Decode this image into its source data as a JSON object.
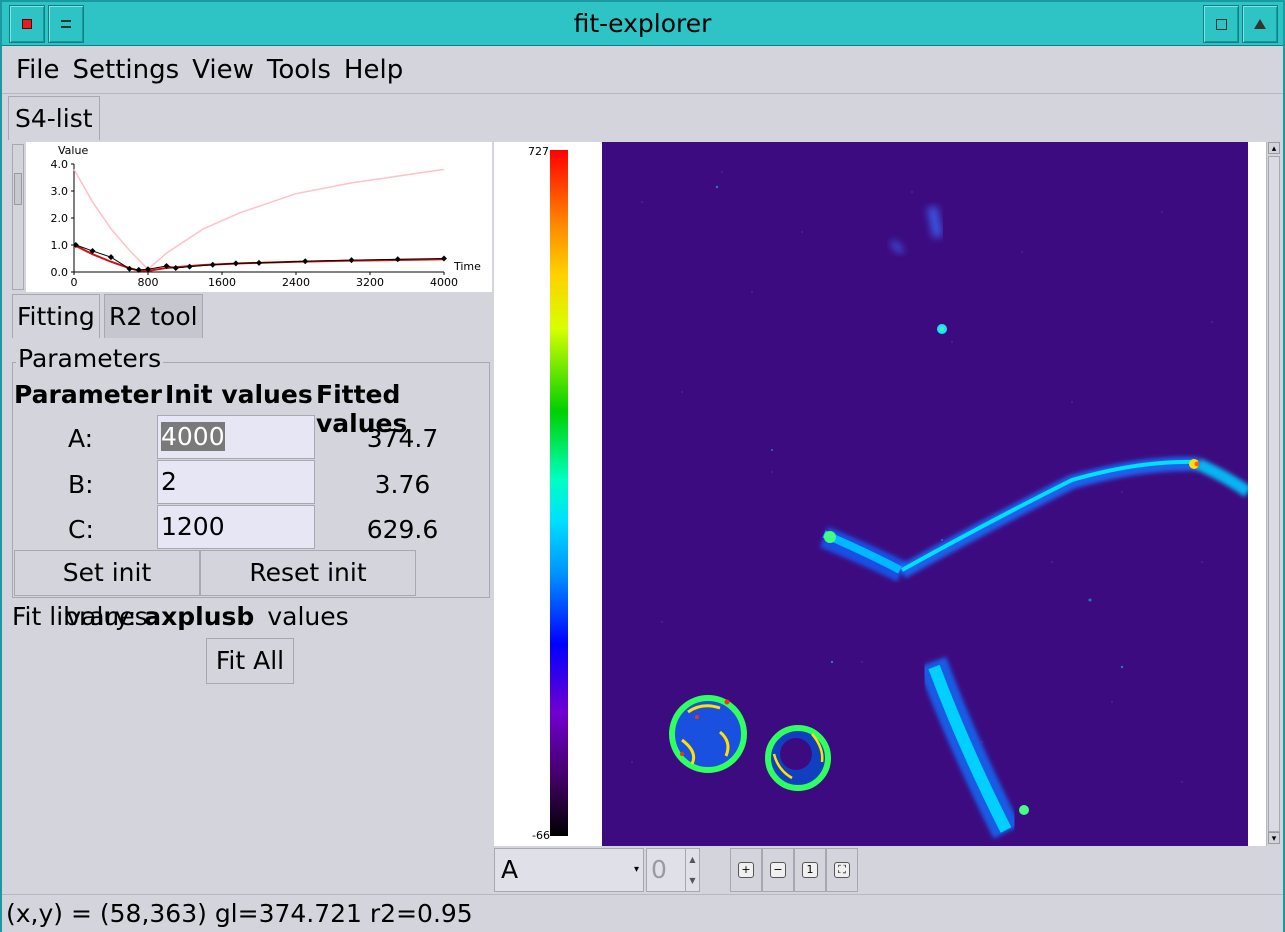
{
  "window": {
    "title": "fit-explorer"
  },
  "menu": {
    "items": [
      "File",
      "Settings",
      "View",
      "Tools",
      "Help"
    ]
  },
  "tabs": {
    "main": "S4-list",
    "fitting": "Fitting",
    "r2tool": "R2 tool"
  },
  "parameters": {
    "group_title": "Parameters",
    "headers": {
      "param": "Parameter",
      "init": "Init values",
      "fitted": "Fitted values"
    },
    "rows": [
      {
        "name": "A:",
        "init": "4000",
        "fitted": "374.7"
      },
      {
        "name": "B:",
        "init": "2",
        "fitted": "3.76"
      },
      {
        "name": "C:",
        "init": "1200",
        "fitted": "629.6"
      }
    ],
    "set_button": "Set init values",
    "reset_button": "Reset init values"
  },
  "fit_library": {
    "label": "Fit library:",
    "value": "axplusb"
  },
  "fit_all_button": "Fit All",
  "colorbar": {
    "max": "727",
    "min": "-66"
  },
  "viewer": {
    "channel": "A",
    "frame": "0"
  },
  "status": "(x,y) = (58,363) gl=374.721 r2=0.95",
  "chart_data": {
    "type": "line",
    "xlabel": "Time",
    "ylabel": "Value",
    "xlim": [
      0,
      4000
    ],
    "ylim": [
      0,
      4.0
    ],
    "xticks": [
      "0",
      "800",
      "1600",
      "2400",
      "3200",
      "4000"
    ],
    "yticks": [
      "0.0",
      "1.0",
      "2.0",
      "3.0",
      "4.0"
    ],
    "series": [
      {
        "color": "#ffc0c8",
        "x": [
          0,
          200,
          400,
          600,
          800,
          1000,
          1400,
          1800,
          2400,
          3000,
          3600,
          4000
        ],
        "y": [
          3.8,
          2.6,
          1.6,
          0.8,
          0.1,
          0.7,
          1.6,
          2.2,
          2.9,
          3.3,
          3.6,
          3.8
        ]
      },
      {
        "color": "#d01010",
        "x": [
          0,
          200,
          400,
          600,
          700,
          800,
          1000,
          1400,
          1800,
          2400,
          3000,
          3600,
          4000
        ],
        "y": [
          1.0,
          0.66,
          0.38,
          0.14,
          0.05,
          0.04,
          0.15,
          0.26,
          0.32,
          0.38,
          0.42,
          0.45,
          0.47
        ]
      },
      {
        "color": "#000000",
        "markers": true,
        "x": [
          20,
          200,
          400,
          600,
          700,
          800,
          1000,
          1100,
          1250,
          1500,
          1750,
          2000,
          2500,
          3000,
          3500,
          4000
        ],
        "y": [
          1.0,
          0.78,
          0.55,
          0.12,
          0.08,
          0.1,
          0.22,
          0.15,
          0.2,
          0.27,
          0.32,
          0.34,
          0.4,
          0.44,
          0.47,
          0.5
        ]
      }
    ]
  }
}
